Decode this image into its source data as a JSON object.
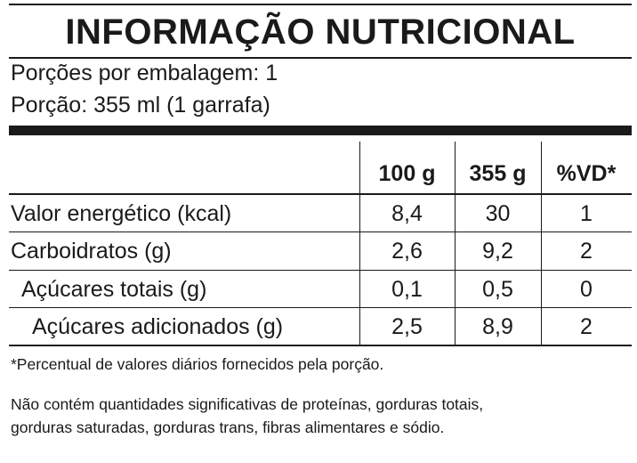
{
  "title": "INFORMAÇÃO NUTRICIONAL",
  "portions": {
    "per_package": "Porções por embalagem: 1",
    "serving": "Porção: 355 ml (1 garrafa)"
  },
  "table": {
    "headers": [
      "100 g",
      "355 g",
      "%VD*"
    ],
    "rows": [
      {
        "label": "Valor energético (kcal)",
        "v100": "8,4",
        "vserving": "30",
        "vd": "1"
      },
      {
        "label": "Carboidratos (g)",
        "v100": "2,6",
        "vserving": "9,2",
        "vd": "2"
      },
      {
        "label": "Açúcares totais (g)",
        "v100": "0,1",
        "vserving": "0,5",
        "vd": "0"
      },
      {
        "label": "Açúcares adicionados (g)",
        "v100": "2,5",
        "vserving": "8,9",
        "vd": "2"
      }
    ]
  },
  "footnotes": {
    "vd_note": "*Percentual de valores diários fornecidos pela porção.",
    "not_significant_1": "Não contém quantidades significativas de proteínas, gorduras totais,",
    "not_significant_2": "gorduras saturadas, gorduras trans, fibras alimentares e sódio."
  }
}
